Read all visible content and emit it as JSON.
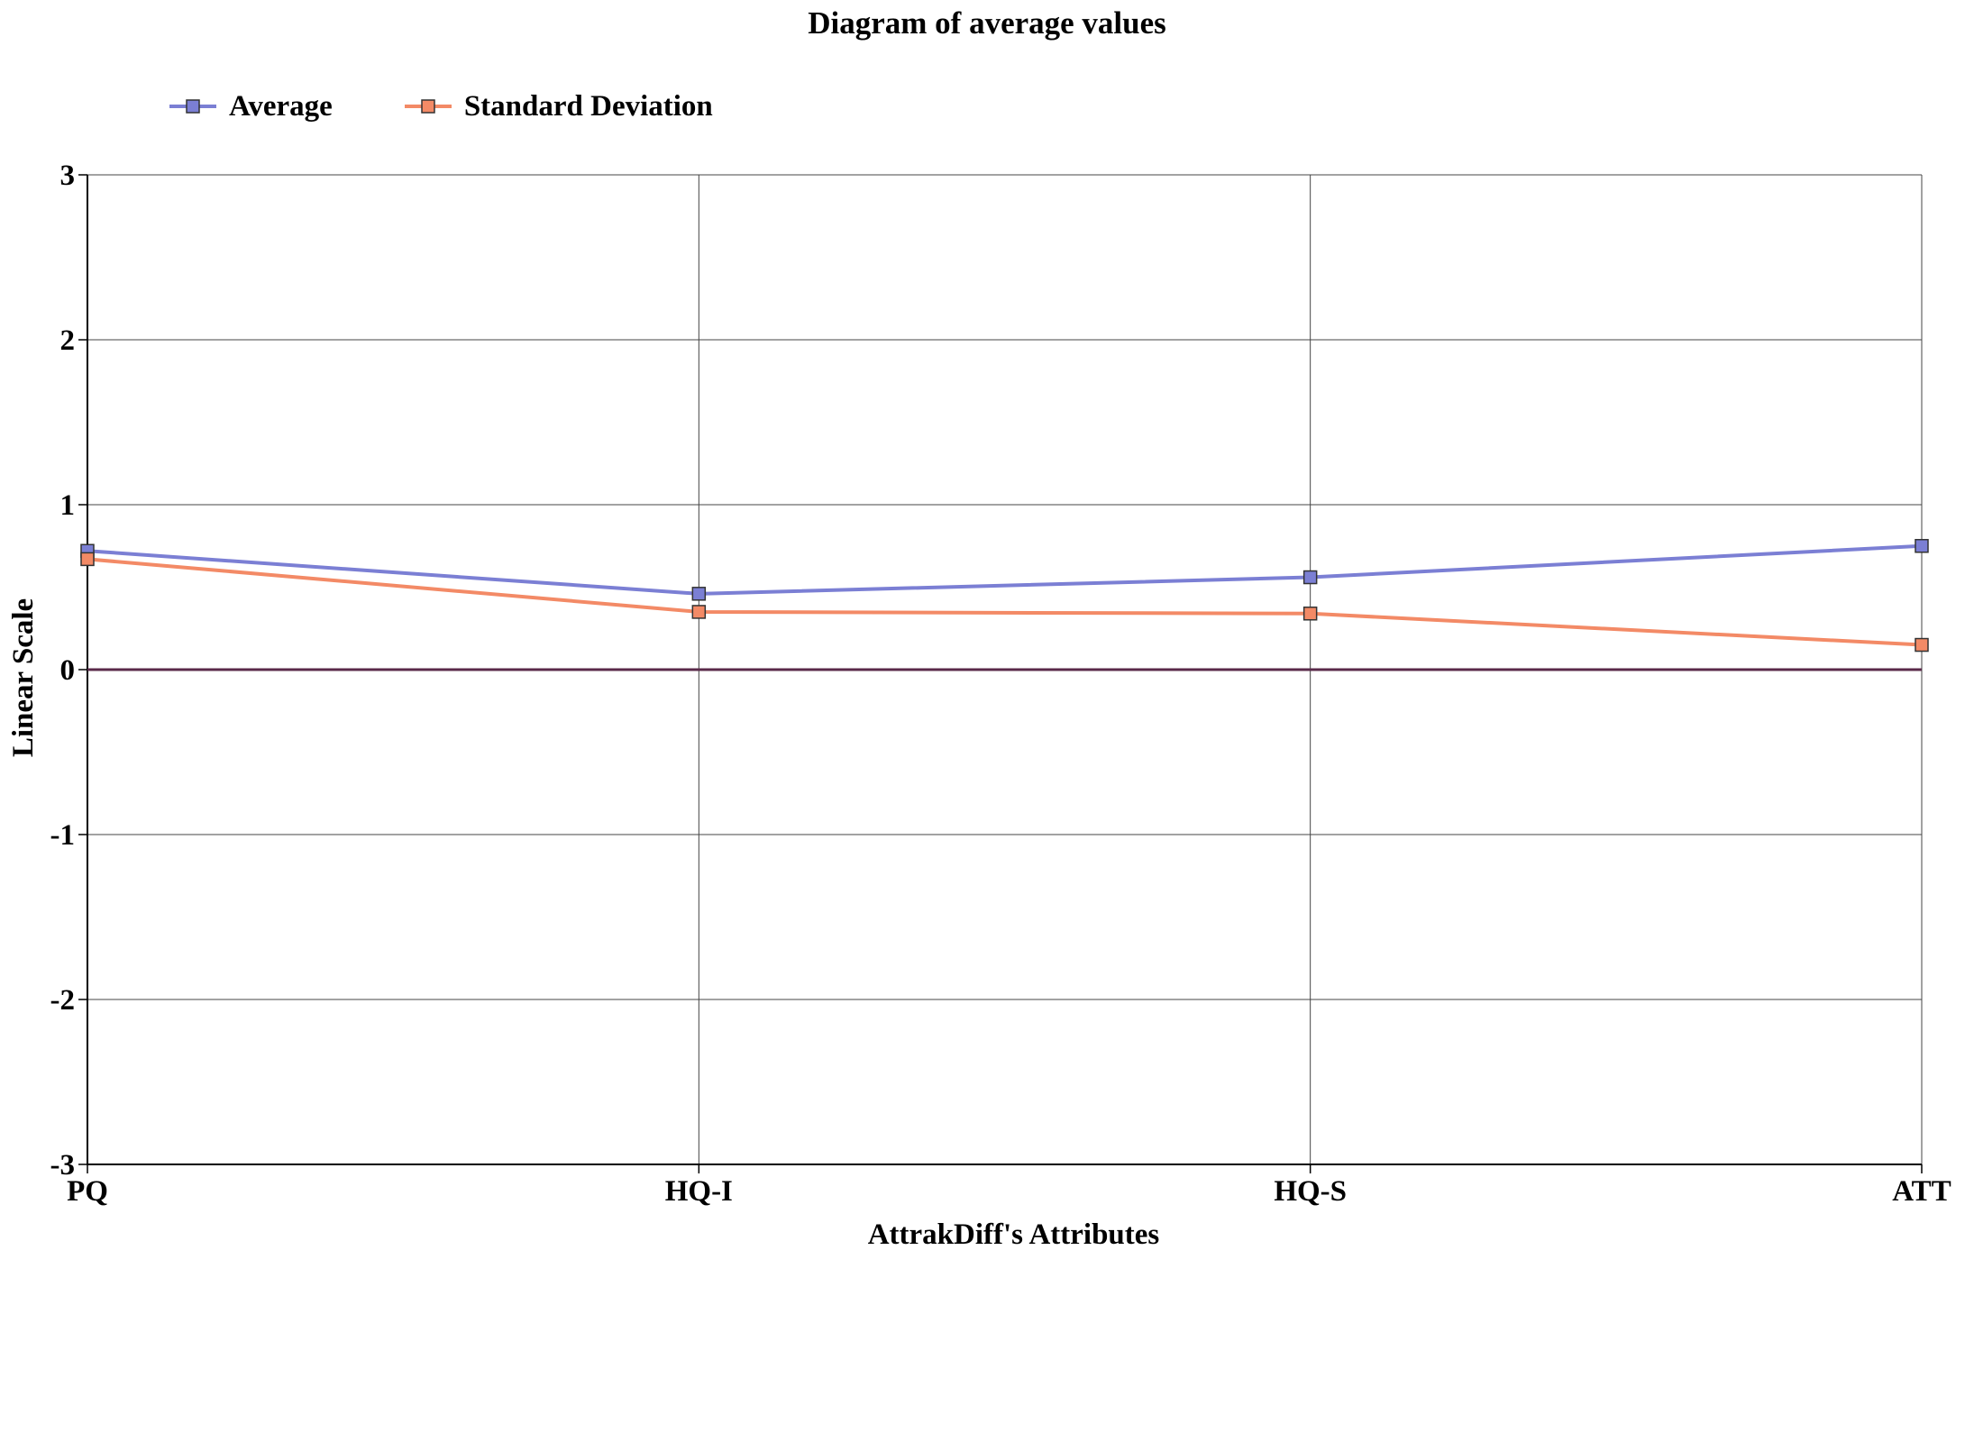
{
  "chart_data": {
    "type": "line",
    "title": "Diagram of average values",
    "xlabel": "AttrakDiff's Attributes",
    "ylabel": "Linear Scale",
    "categories": [
      "PQ",
      "HQ-I",
      "HQ-S",
      "ATT"
    ],
    "ylim": [
      -3,
      3
    ],
    "yticks": [
      -3,
      -2,
      -1,
      0,
      1,
      2,
      3
    ],
    "grid": true,
    "legend_position": "top-left",
    "series": [
      {
        "name": "Average",
        "color": "#7b7fd4",
        "values": [
          0.72,
          0.46,
          0.56,
          0.75
        ]
      },
      {
        "name": "Standard Deviation",
        "color": "#f38a66",
        "values": [
          0.67,
          0.35,
          0.34,
          0.15
        ]
      }
    ],
    "zero_line_color": "#5a2a4a"
  }
}
